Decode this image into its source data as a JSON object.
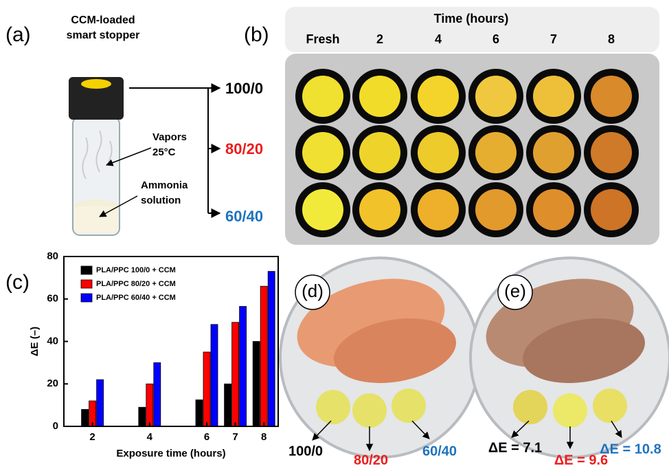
{
  "panel_a": {
    "label": "(a)",
    "stopper": [
      "CCM-loaded",
      "smart stopper"
    ],
    "vapors": [
      "Vapors",
      "25°C"
    ],
    "solution": [
      "Ammonia",
      "solution"
    ],
    "outputs": [
      "100/0",
      "80/20",
      "60/40"
    ]
  },
  "panel_b": {
    "label": "(b)",
    "title": "Time (hours)",
    "columns": [
      "Fresh",
      "2",
      "4",
      "6",
      "7",
      "8"
    ]
  },
  "panel_c": {
    "label": "(c)"
  },
  "chart_data": {
    "type": "bar",
    "x": [
      2,
      4,
      6,
      7,
      8
    ],
    "xlabel": "Exposure time (hours)",
    "ylabel": "ΔE (–)",
    "series": [
      {
        "name": "PLA/PPC 100/0 + CCM",
        "color": "#000000",
        "values": [
          8,
          9,
          12.5,
          20,
          40
        ]
      },
      {
        "name": "PLA/PPC 80/20 + CCM",
        "color": "#ff0000",
        "values": [
          12,
          20,
          35,
          49,
          66
        ]
      },
      {
        "name": "PLA/PPC 60/40 + CCM",
        "color": "#0000ff",
        "values": [
          22,
          30,
          48,
          56.5,
          73
        ]
      }
    ],
    "xlim": [
      1,
      8.5
    ],
    "xticks": [
      2,
      4,
      6,
      7,
      8
    ],
    "ylim": [
      0,
      80
    ],
    "yticks": [
      0,
      20,
      40,
      60,
      80
    ],
    "legend": "upper-left"
  },
  "panel_d": {
    "label": "(d)",
    "labels": [
      "100/0",
      "80/20",
      "60/40"
    ]
  },
  "panel_e": {
    "label": "(e)",
    "labels": [
      "ΔE = 7.1",
      "ΔE = 9.6",
      "ΔE = 10.8"
    ]
  }
}
